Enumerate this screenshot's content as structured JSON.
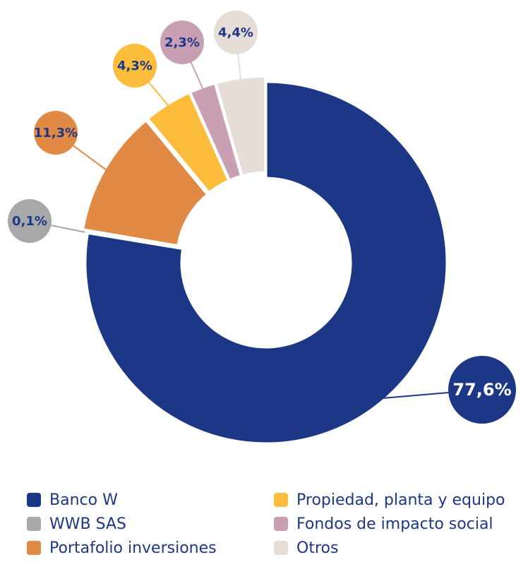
{
  "chart_data": {
    "type": "pie",
    "categories": [
      "Banco W",
      "WWB SAS",
      "Portafolio inversiones",
      "Propiedad, planta y equipo",
      "Fondos de impacto social",
      "Otros"
    ],
    "values": [
      77.6,
      0.1,
      11.3,
      4.3,
      2.3,
      4.4
    ],
    "value_labels": [
      "77,6%",
      "0,1%",
      "11,3%",
      "4,3%",
      "2,3%",
      "4,4%"
    ],
    "colors": [
      "#1d3787",
      "#a7a8aa",
      "#e08a45",
      "#fbbd3b",
      "#c99fb4",
      "#e5ddd6"
    ]
  }
}
